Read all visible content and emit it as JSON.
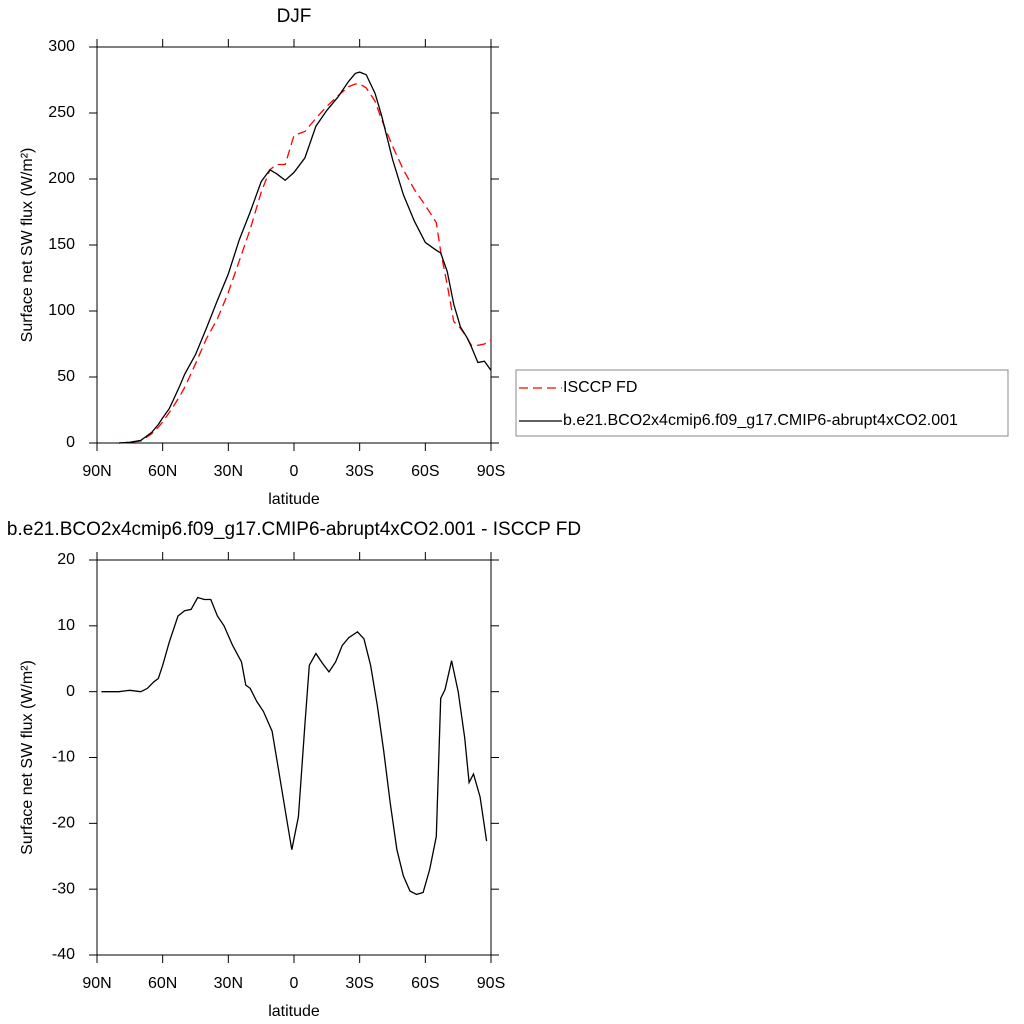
{
  "chart_data": [
    {
      "type": "line",
      "title": "DJF",
      "xlabel": "latitude",
      "ylabel": "Surface net SW flux (W/m²)",
      "x": [
        80,
        75,
        70,
        65,
        62,
        60,
        57,
        55,
        52,
        50,
        45,
        40,
        35,
        30,
        25,
        20,
        15,
        11,
        8,
        4,
        0,
        -5,
        -10,
        -15,
        -20,
        -25,
        -28,
        -30,
        -33,
        -37,
        -40,
        -45,
        -50,
        -55,
        -60,
        -65,
        -67,
        -70,
        -73,
        -76,
        -79,
        -81,
        -84,
        -87,
        -90
      ],
      "series": [
        {
          "name": "ISCCP FD",
          "color": "#ff0000",
          "dash": true,
          "values": [
            0,
            0.5,
            1.5,
            7,
            12,
            16,
            23,
            28,
            36,
            42,
            60,
            79,
            94,
            114,
            138,
            162,
            190,
            207,
            211,
            211,
            233,
            236,
            246,
            255,
            263,
            270,
            272,
            272,
            269,
            259,
            245,
            225,
            207,
            192,
            180,
            167,
            145,
            120,
            92,
            87,
            80,
            74,
            74,
            75,
            78
          ]
        },
        {
          "name": "b.e21.BCO2x4cmip6.f09_g17.CMIP6-abrupt4xCO2.001",
          "color": "#000000",
          "dash": false,
          "values": [
            0,
            0.5,
            2,
            8,
            14,
            19,
            26,
            33,
            44,
            52,
            67,
            87,
            108,
            128,
            154,
            175,
            198,
            207,
            204,
            199,
            205,
            216,
            240,
            252,
            262,
            274,
            280,
            281,
            279,
            265,
            248,
            215,
            188,
            168,
            152,
            146,
            144,
            130,
            105,
            88,
            80,
            73,
            61,
            62,
            55
          ]
        }
      ],
      "xlim": [
        90,
        -90
      ],
      "xticks": [
        {
          "value": 90,
          "label": "90N"
        },
        {
          "value": 60,
          "label": "60N"
        },
        {
          "value": 30,
          "label": "30N"
        },
        0,
        {
          "value": -30,
          "label": "30S"
        },
        {
          "value": -60,
          "label": "60S"
        },
        {
          "value": -90,
          "label": "90S"
        }
      ],
      "ylim": [
        0,
        300
      ],
      "yticks": [
        0,
        50,
        100,
        150,
        200,
        250,
        300
      ],
      "legend": "right"
    },
    {
      "type": "line",
      "title": "b.e21.BCO2x4cmip6.f09_g17.CMIP6-abrupt4xCO2.001 - ISCCP FD",
      "xlabel": "latitude",
      "ylabel": "Surface net SW flux (W/m²)",
      "x": [
        88,
        80,
        75,
        70,
        67,
        64,
        62,
        60,
        57,
        53,
        50,
        47,
        44,
        41,
        38,
        35,
        32,
        28,
        24,
        22,
        20,
        17,
        14,
        10,
        7,
        4,
        1,
        -2,
        -5,
        -7,
        -10,
        -13,
        -16,
        -19,
        -22,
        -25,
        -29,
        -32,
        -35,
        -38,
        -41,
        -44,
        -47,
        -50,
        -53,
        -56,
        -59,
        -62,
        -65,
        -67,
        -69,
        -72,
        -75,
        -78,
        -80,
        -82,
        -85,
        -88
      ],
      "series": [
        {
          "color": "#000000",
          "values": [
            0,
            0,
            0.2,
            0,
            0.5,
            1.5,
            2,
            4,
            7.5,
            11.5,
            12.3,
            12.5,
            14.3,
            14,
            14,
            11.5,
            10,
            7,
            4.5,
            1,
            0.5,
            -1.5,
            -3,
            -6,
            -12,
            -18,
            -24,
            -19,
            -5,
            4,
            5.8,
            4.3,
            3,
            4.5,
            7,
            8.2,
            9.1,
            8,
            4,
            -2,
            -9,
            -17,
            -24,
            -28,
            -30.3,
            -30.8,
            -30.5,
            -27,
            -22,
            -1,
            0.3,
            4.7,
            0,
            -7,
            -13.8,
            -12.5,
            -16,
            -22.7
          ]
        }
      ],
      "xlim": [
        90,
        -90
      ],
      "xticks": [
        {
          "value": 90,
          "label": "90N"
        },
        {
          "value": 60,
          "label": "60N"
        },
        {
          "value": 30,
          "label": "30N"
        },
        0,
        {
          "value": -30,
          "label": "30S"
        },
        {
          "value": -60,
          "label": "60S"
        },
        {
          "value": -90,
          "label": "90S"
        }
      ],
      "ylim": [
        -40,
        20
      ],
      "yticks": [
        -40,
        -30,
        -20,
        -10,
        0,
        10,
        20
      ]
    }
  ]
}
